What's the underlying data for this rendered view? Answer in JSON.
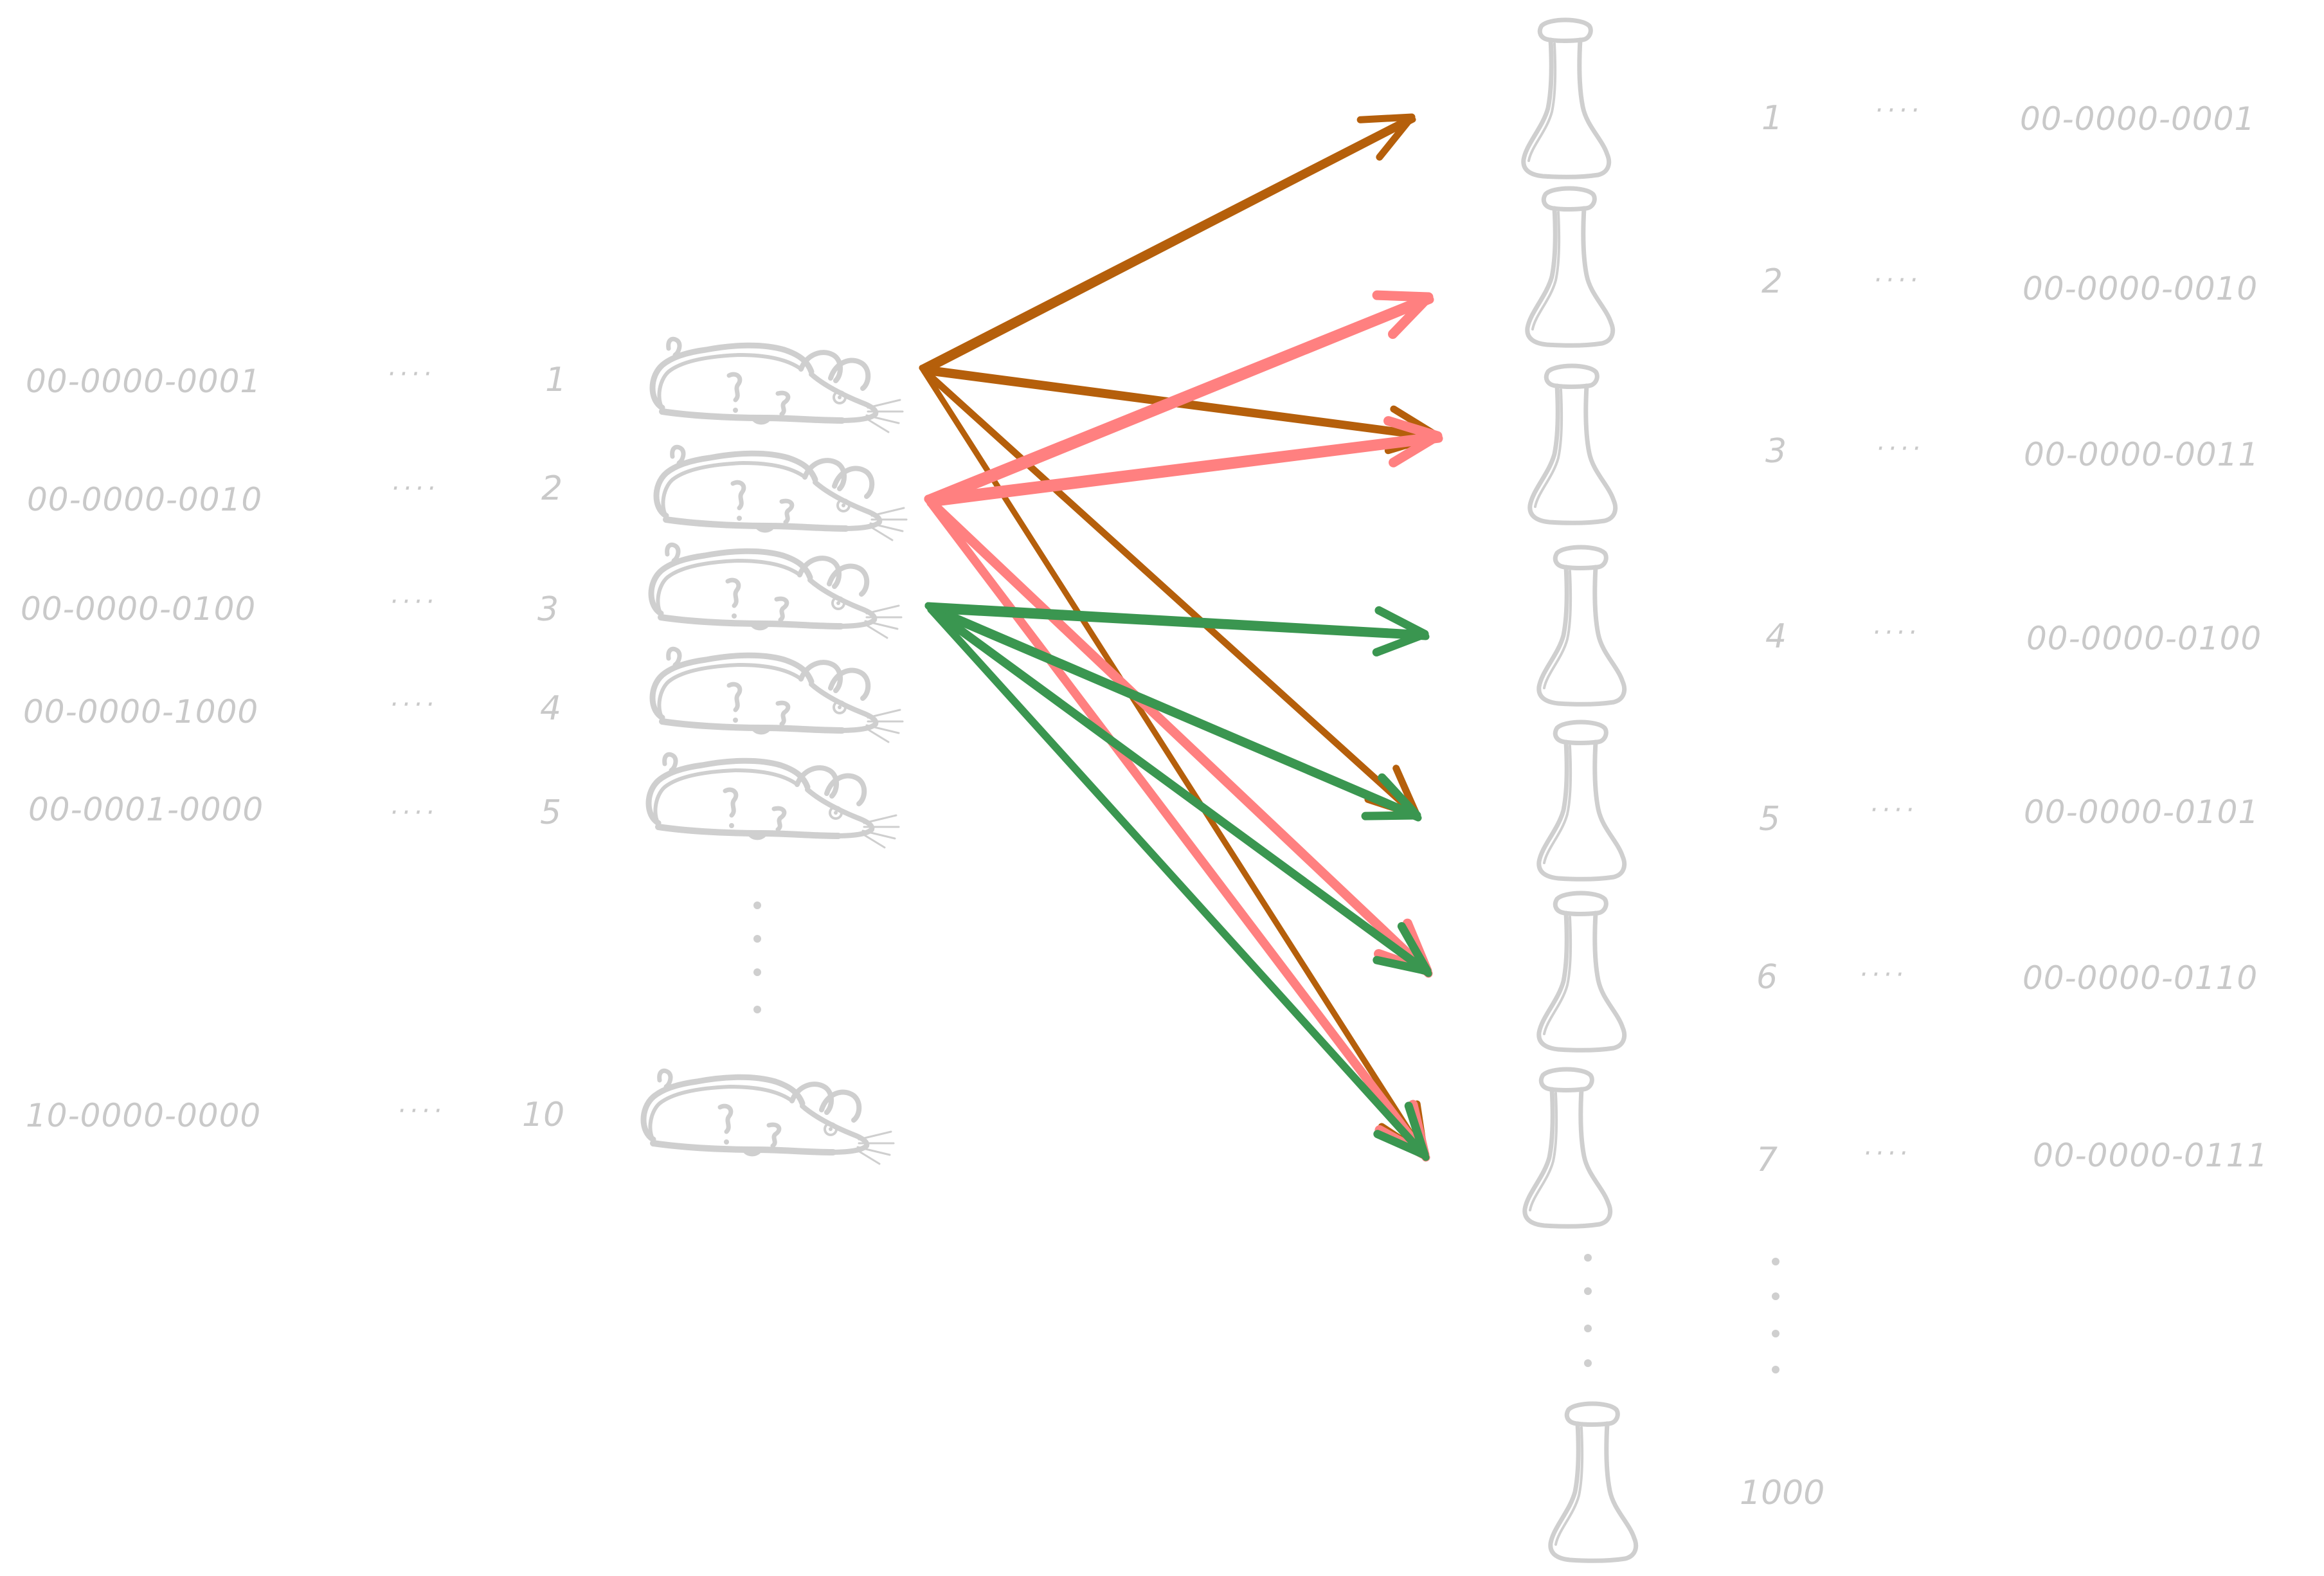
{
  "colors": {
    "label_gray": "#c9c9c9",
    "sketch_gray": "#cfcfcf",
    "arrow_rat1": "#b55f0b",
    "arrow_rat2": "#ff8080",
    "arrow_rat3": "#3a9650"
  },
  "rats": [
    {
      "code": "00-0000-0001",
      "number": "1",
      "connector": "····"
    },
    {
      "code": "00-0000-0010",
      "number": "2",
      "connector": "····"
    },
    {
      "code": "00-0000-0100",
      "number": "3",
      "connector": "····"
    },
    {
      "code": "00-0000-1000",
      "number": "4",
      "connector": "····"
    },
    {
      "code": "00-0001-0000",
      "number": "5",
      "connector": "····"
    },
    {
      "code": "10-0000-0000",
      "number": "10",
      "connector": "····"
    }
  ],
  "bottles": [
    {
      "number": "1",
      "connector": "····",
      "code": "00-0000-0001"
    },
    {
      "number": "2",
      "connector": "····",
      "code": "00-0000-0010"
    },
    {
      "number": "3",
      "connector": "····",
      "code": "00-0000-0011"
    },
    {
      "number": "4",
      "connector": "····",
      "code": "00-0000-0100"
    },
    {
      "number": "5",
      "connector": "····",
      "code": "00-0000-0101"
    },
    {
      "number": "6",
      "connector": "····",
      "code": "00-0000-0110"
    },
    {
      "number": "7",
      "connector": "····",
      "code": "00-0000-0111"
    }
  ],
  "last_bottle": {
    "number": "1000"
  },
  "icons": {
    "rat": "rat-icon",
    "flask": "flask-icon",
    "ellipsis": "vertical-ellipsis-icon"
  },
  "connections": [
    {
      "from_rat": 1,
      "to_bottles": [
        1,
        3,
        5,
        7
      ],
      "color": "#b55f0b"
    },
    {
      "from_rat": 2,
      "to_bottles": [
        2,
        3,
        6,
        7
      ],
      "color": "#ff8080"
    },
    {
      "from_rat": 3,
      "to_bottles": [
        4,
        5,
        6,
        7
      ],
      "color": "#3a9650"
    }
  ]
}
